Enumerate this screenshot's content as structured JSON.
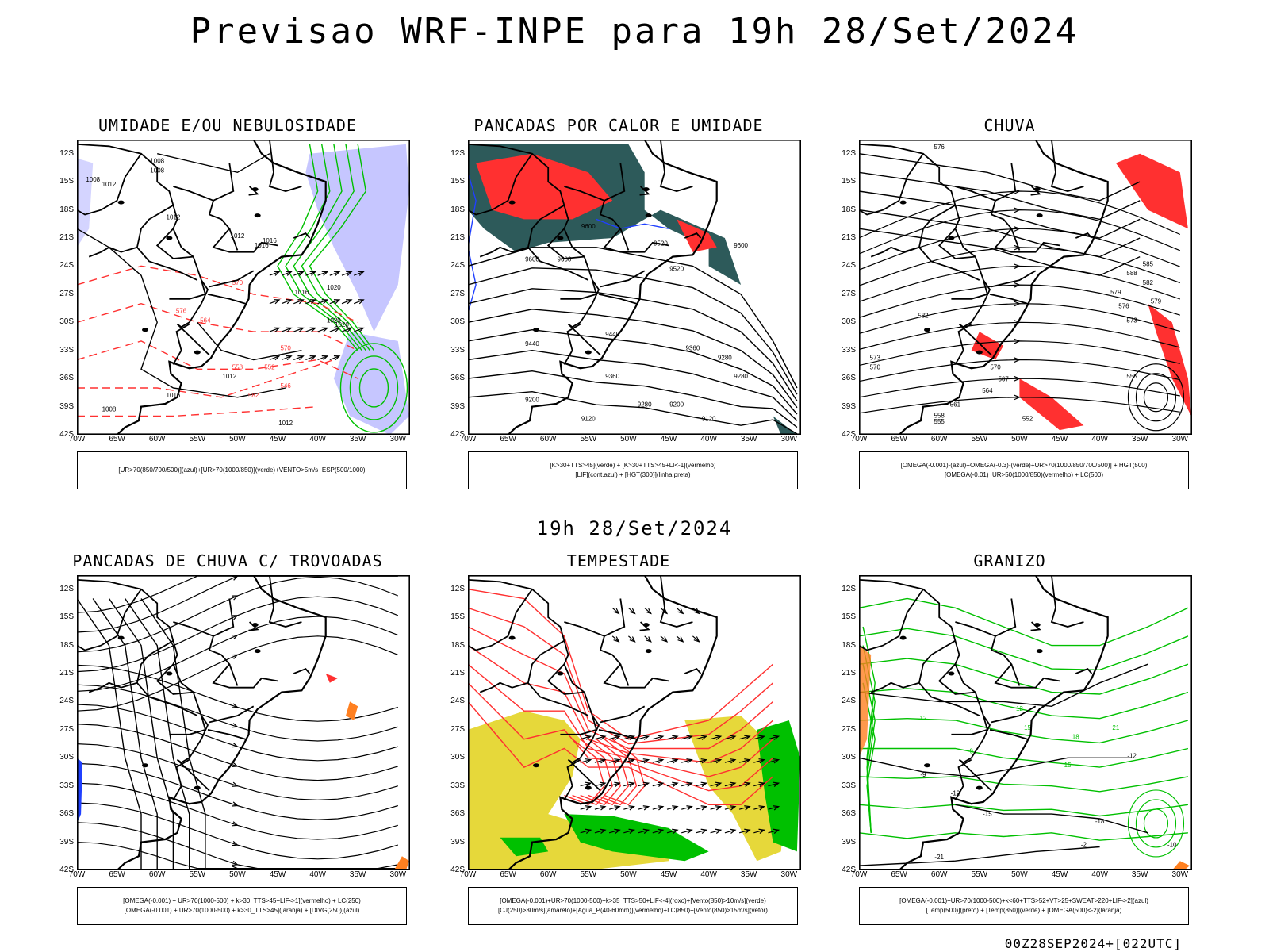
{
  "title": "Previsao WRF-INPE  para 19h 28/Set/2024",
  "middle_stamp": "19h 28/Set/2024",
  "footer_stamp": "00Z28SEP2024+[022UTC]",
  "lat_ticks": [
    "12S",
    "15S",
    "18S",
    "21S",
    "24S",
    "27S",
    "30S",
    "33S",
    "36S",
    "39S",
    "42S"
  ],
  "lon_ticks": [
    "70W",
    "65W",
    "60W",
    "55W",
    "50W",
    "45W",
    "40W",
    "35W",
    "30W"
  ],
  "colors": {
    "green": "#00c000",
    "red": "#ff3030",
    "blue": "#2040ff",
    "lavender": "#b8b8ff",
    "darkteal": "#2d5a5a",
    "yellow": "#e6d83a",
    "orange": "#ff8020",
    "dashed_red": "#ff3030"
  },
  "panels": [
    {
      "title": "UMIDADE E/OU NEBULOSIDADE",
      "legend": [
        "[UR>70(850/700/500)](azul)+[UR>70(1000/850)](verde)+VENTO>5m/s+ESP(500/1000)"
      ],
      "contour_labels": [
        "1008",
        "1008",
        "1008",
        "1012",
        "1012",
        "1012",
        "1016",
        "1016",
        "1016",
        "1020",
        "1020",
        "1020",
        "1012",
        "1016",
        "570",
        "570",
        "576",
        "564",
        "558",
        "552",
        "546",
        "582",
        "1012",
        "1008"
      ]
    },
    {
      "title": "PANCADAS POR CALOR E UMIDADE",
      "legend": [
        "[K>30+TTS>45](verde) + [K>30+TTS>45+LI<-1](vermelho)",
        "[LIF](cont.azul) + [HGT(300)](linha preta)"
      ],
      "contour_labels": [
        "9520",
        "9600",
        "9600",
        "9600",
        "9520",
        "9440",
        "9440",
        "9360",
        "9360",
        "9280",
        "9280",
        "9200",
        "9200",
        "9120",
        "9120",
        "9600",
        "9280"
      ]
    },
    {
      "title": "CHUVA",
      "legend": [
        "[OMEGA(-0.001)-(azul)+OMEGA(-0.3)-(verde)+UR>70(1000/850/700/500)] + HGT(500)",
        "[OMEGA(-0.01)_UR>50(1000/850)(vermelho) + LC(500)"
      ],
      "contour_labels": [
        "582",
        "579",
        "576",
        "573",
        "570",
        "567",
        "564",
        "561",
        "558",
        "555",
        "552",
        "588",
        "585",
        "582",
        "579",
        "576",
        "573",
        "570",
        "555"
      ]
    },
    {
      "title": "PANCADAS DE CHUVA C/ TROVOADAS",
      "legend": [
        "[OMEGA(-0.001) + UR>70(1000-500) + k>30_TTS>45+LIF<-1](vermelho) + LC(250)",
        "[OMEGA(-0.001) + UR>70(1000-500) + k>30_TTS>45](laranja) + [DIVG(250)](azul)"
      ],
      "contour_labels": []
    },
    {
      "title": "TEMPESTADE",
      "legend": [
        "[OMEGA(-0.001)+UR>70(1000-500)+k>35_TTS>50+LIF<-4](roxo)+[Vento(850)>10m/s](verde)",
        "[CJ(250)>30m/s](amarelo)+[Agua_P(40-60mm)](vermelho)+LC(850)+[Vento(850)>15m/s](vetor)"
      ],
      "contour_labels": []
    },
    {
      "title": "GRANIZO",
      "legend": [
        "[OMEGA(-0.001)+UR>70(1000-500)+k<60+TTS>52+VT>25+SWEAT>220+LIF<-2](azul)",
        "[Temp(500)](preto) + [Temp(850)](verde) + [OMEGA(500)<-2](laranja)"
      ],
      "contour_labels": [
        "-9",
        "-12",
        "-15",
        "-18",
        "-21",
        "-12",
        "-2",
        "-10",
        "12",
        "15",
        "18",
        "21",
        "9",
        "12",
        "15"
      ]
    }
  ]
}
